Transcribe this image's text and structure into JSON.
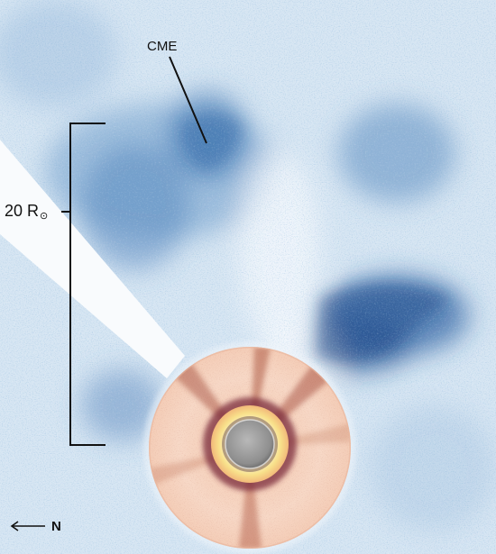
{
  "labels": {
    "cme": "CME",
    "scale_main": "20 R",
    "scale_symbol": "⊙",
    "north": "N"
  },
  "icons": {
    "north_arrow": "left-arrow-icon"
  },
  "colors": {
    "background": "#d7e6f3",
    "coronal_blue": "#2f66a6",
    "inner_disk": "#f6d2bd",
    "occulter_ring": "#f7df86",
    "sun_disk": "#9a9a9a",
    "annotation": "#111111"
  }
}
